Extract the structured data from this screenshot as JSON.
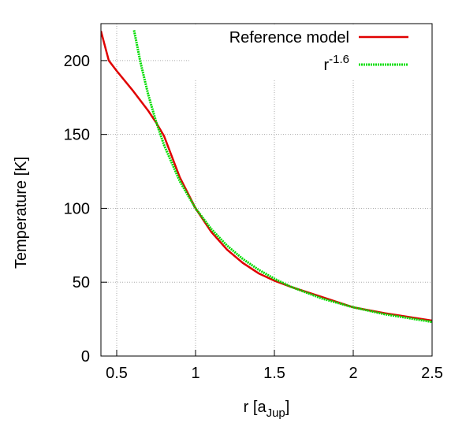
{
  "chart_data": {
    "type": "line",
    "ylabel": "Temperature [K]",
    "xlabel": {
      "text": "r [a",
      "subscript": "Jup",
      "suffix": "]"
    },
    "xlim": [
      0.4,
      2.5
    ],
    "xticks": [
      0.5,
      1,
      1.5,
      2,
      2.5
    ],
    "ylim": [
      0,
      225
    ],
    "yticks": [
      0,
      50,
      100,
      150,
      200
    ],
    "grid": true,
    "legend": "top-right",
    "series": [
      {
        "name": "Reference model",
        "color": "#e00000",
        "x": [
          0.4,
          0.45,
          0.5,
          0.6,
          0.7,
          0.75,
          0.8,
          0.85,
          0.9,
          1.0,
          1.1,
          1.2,
          1.3,
          1.4,
          1.5,
          1.6,
          1.8,
          2.0,
          2.2,
          2.5
        ],
        "values": [
          220,
          200,
          193,
          180,
          166,
          158,
          149,
          135,
          121,
          100,
          84,
          72,
          63,
          56,
          51,
          47,
          40,
          33,
          29,
          24
        ]
      },
      {
        "name": "r",
        "name_superscript": "-1.6",
        "color": "#00dd00",
        "dashed": true,
        "x": [
          0.61,
          0.65,
          0.7,
          0.75,
          0.8,
          0.9,
          1.0,
          1.1,
          1.2,
          1.3,
          1.4,
          1.5,
          1.6,
          1.8,
          2.0,
          2.2,
          2.5
        ],
        "values": [
          220.5,
          199.2,
          176.9,
          158.5,
          142.9,
          118.4,
          100,
          85.9,
          74.7,
          65.7,
          58.4,
          52.3,
          47.1,
          39.0,
          33.0,
          28.3,
          23.1
        ]
      }
    ]
  }
}
